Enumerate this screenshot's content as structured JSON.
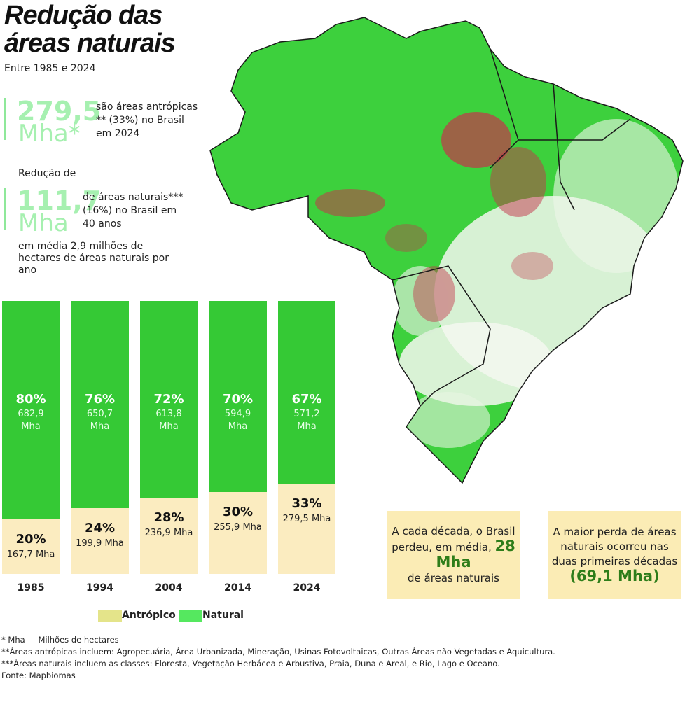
{
  "header": {
    "title_line1": "Redução das",
    "title_line2": "áreas naturais",
    "subtitle": "Entre 1985 e 2024"
  },
  "stats": [
    {
      "number": "279,5",
      "unit": "Mha*",
      "text": "são áreas antrópicas ** (33%) no Brasil em 2024"
    },
    {
      "intro": "Redução de",
      "number": "111,7",
      "unit": "Mha",
      "text": "de áreas naturais*** (16%) no Brasil em 40 anos",
      "note": "em média 2,9 milhões de hectares de áreas naturais por ano"
    }
  ],
  "chart_data": {
    "type": "stacked_bar",
    "categories": [
      "1985",
      "1994",
      "2004",
      "2014",
      "2024"
    ],
    "series": [
      {
        "name": "Antrópico",
        "color": "#fbecc0",
        "legend_color": "#e4e48a",
        "values": [
          20,
          24,
          28,
          30,
          33
        ],
        "value_labels": [
          "20%",
          "24%",
          "28%",
          "30%",
          "33%"
        ],
        "area_labels": [
          "167,7 Mha",
          "199,9 Mha",
          "236,9 Mha",
          "255,9 Mha",
          "279,5 Mha"
        ]
      },
      {
        "name": "Natural",
        "color": "#35c935",
        "legend_color": "#55e85f",
        "values": [
          80,
          76,
          72,
          70,
          67
        ],
        "value_labels": [
          "80%",
          "76%",
          "72%",
          "70%",
          "67%"
        ],
        "area_labels": [
          "682,9\nMha",
          "650,7\nMha",
          "613,8\nMha",
          "594,9\nMha",
          "571,2\nMha"
        ]
      }
    ]
  },
  "callouts": [
    {
      "before": "A cada década, o Brasil perdeu, em média,",
      "highlight": "28 Mha",
      "after": "de áreas naturais"
    },
    {
      "before": "A maior perda de áreas naturais ocorreu nas duas primeiras décadas",
      "highlight": "(69,1 Mha)",
      "after": ""
    }
  ],
  "footnotes": [
    "* Mha — Milhões de hectares",
    "**Áreas antrópicas incluem: Agropecuária, Área Urbanizada, Mineração, Usinas Fotovoltaicas, Outras Áreas não Vegetadas e Aquicultura.",
    "***Áreas naturais incluem as classes: Floresta, Vegetação Herbácea e Arbustiva, Praia, Duna e Areal, e Rio, Lago e Oceano.",
    "Fonte: Mapbiomas"
  ]
}
